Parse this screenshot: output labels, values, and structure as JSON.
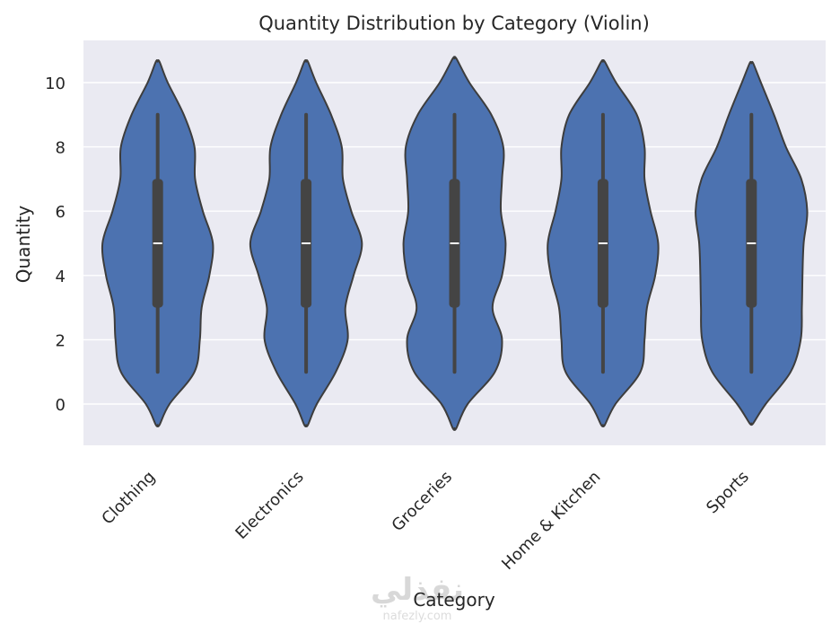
{
  "chart_data": {
    "type": "violin",
    "title": "Quantity Distribution by Category (Violin)",
    "xlabel": "Category",
    "ylabel": "Quantity",
    "ylim": [
      -1.3,
      11.2
    ],
    "yticks": [
      0,
      2,
      4,
      6,
      8,
      10
    ],
    "grid": true,
    "colors": {
      "violin": "#4c72b0",
      "outline": "#3d3d3d",
      "box": "#444444",
      "median": "#ffffff",
      "background": "#eaeaf2",
      "grid": "#ffffff"
    },
    "categories": [
      "Clothing",
      "Electronics",
      "Groceries",
      "Home & Kitchen",
      "Sports"
    ],
    "violins": [
      {
        "category": "Clothing",
        "min": 1,
        "q1": 3,
        "median": 5,
        "q3": 7,
        "max": 9,
        "density": [
          [
            -0.65,
            0.03
          ],
          [
            0,
            0.2
          ],
          [
            1,
            0.62
          ],
          [
            2,
            0.71
          ],
          [
            3,
            0.74
          ],
          [
            4,
            0.87
          ],
          [
            5,
            0.93
          ],
          [
            6,
            0.76
          ],
          [
            7,
            0.63
          ],
          [
            8,
            0.62
          ],
          [
            9,
            0.44
          ],
          [
            10,
            0.17
          ],
          [
            10.65,
            0.03
          ]
        ]
      },
      {
        "category": "Electronics",
        "min": 1,
        "q1": 3,
        "median": 5,
        "q3": 7,
        "max": 9,
        "density": [
          [
            -0.65,
            0.03
          ],
          [
            0,
            0.18
          ],
          [
            1,
            0.5
          ],
          [
            2,
            0.7
          ],
          [
            3,
            0.66
          ],
          [
            4,
            0.8
          ],
          [
            5,
            0.94
          ],
          [
            6,
            0.76
          ],
          [
            7,
            0.62
          ],
          [
            8,
            0.6
          ],
          [
            9,
            0.42
          ],
          [
            10,
            0.17
          ],
          [
            10.65,
            0.03
          ]
        ]
      },
      {
        "category": "Groceries",
        "min": 1,
        "q1": 3,
        "median": 5,
        "q3": 7,
        "max": 9,
        "density": [
          [
            -0.75,
            0.03
          ],
          [
            0,
            0.22
          ],
          [
            1,
            0.68
          ],
          [
            2,
            0.8
          ],
          [
            3,
            0.64
          ],
          [
            4,
            0.8
          ],
          [
            5,
            0.86
          ],
          [
            6,
            0.78
          ],
          [
            7,
            0.8
          ],
          [
            8,
            0.82
          ],
          [
            9,
            0.62
          ],
          [
            10,
            0.25
          ],
          [
            10.75,
            0.03
          ]
        ]
      },
      {
        "category": "Home & Kitchen",
        "min": 1,
        "q1": 3,
        "median": 5,
        "q3": 7,
        "max": 9,
        "density": [
          [
            -0.65,
            0.03
          ],
          [
            0,
            0.21
          ],
          [
            1,
            0.63
          ],
          [
            2,
            0.7
          ],
          [
            3,
            0.74
          ],
          [
            4,
            0.88
          ],
          [
            5,
            0.93
          ],
          [
            6,
            0.8
          ],
          [
            7,
            0.7
          ],
          [
            8,
            0.7
          ],
          [
            9,
            0.57
          ],
          [
            10,
            0.22
          ],
          [
            10.65,
            0.03
          ]
        ]
      },
      {
        "category": "Sports",
        "min": 1,
        "q1": 3,
        "median": 5,
        "q3": 7,
        "max": 9,
        "density": [
          [
            -0.6,
            0.03
          ],
          [
            0,
            0.24
          ],
          [
            1,
            0.66
          ],
          [
            2,
            0.83
          ],
          [
            3,
            0.85
          ],
          [
            4,
            0.86
          ],
          [
            5,
            0.88
          ],
          [
            6,
            0.94
          ],
          [
            7,
            0.84
          ],
          [
            8,
            0.58
          ],
          [
            9,
            0.38
          ],
          [
            10,
            0.16
          ],
          [
            10.6,
            0.03
          ]
        ]
      }
    ]
  },
  "watermark": {
    "arabic": "نفذلي",
    "latin": "nafezly.com"
  }
}
